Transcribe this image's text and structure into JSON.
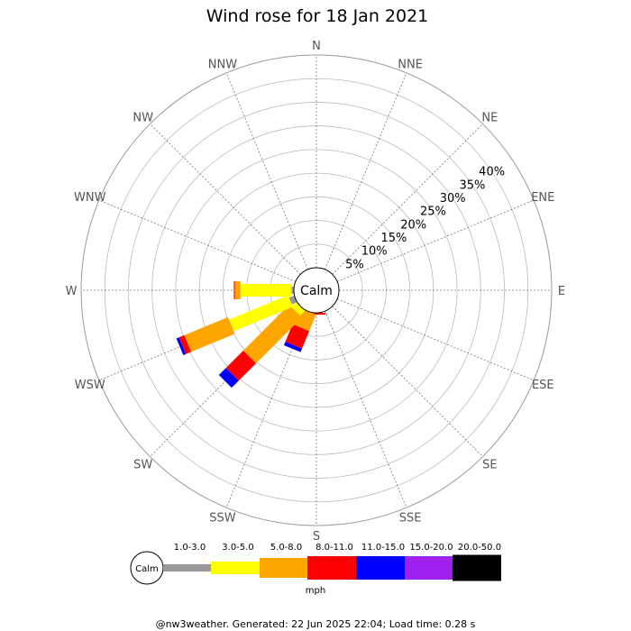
{
  "chart_data": {
    "type": "wind-rose",
    "title": "Wind rose for 18 Jan 2021",
    "directions": [
      "N",
      "NNE",
      "NE",
      "ENE",
      "E",
      "ESE",
      "SE",
      "SSE",
      "S",
      "SSW",
      "SW",
      "WSW",
      "W",
      "WNW",
      "NW",
      "NNW"
    ],
    "radial_ticks": [
      "5%",
      "10%",
      "15%",
      "20%",
      "25%",
      "30%",
      "35%",
      "40%"
    ],
    "radial_values": [
      5,
      10,
      15,
      20,
      25,
      30,
      35,
      40
    ],
    "rmax": 45,
    "calm_label": "Calm",
    "bins": [
      "1.0-3.0",
      "3.0-5.0",
      "5.0-8.0",
      "8.0-11.0",
      "11.0-15.0",
      "15.0-20.0",
      "20.0-50.0"
    ],
    "bin_colors": [
      "#999999",
      "#ffff00",
      "#ffa500",
      "#ff0000",
      "#0000ff",
      "#a020f0",
      "#000000"
    ],
    "unit": "mph",
    "segments": {
      "S": [
        0.0,
        0.0,
        0.0,
        0.4,
        0.0,
        0.0,
        0.0
      ],
      "SSW": [
        0.0,
        0.0,
        3.8,
        4.0,
        0.8,
        0.0,
        0.0
      ],
      "SW": [
        0.0,
        1.5,
        13.7,
        5.2,
        2.1,
        0.0,
        0.0
      ],
      "WSW": [
        1.2,
        13.5,
        10.0,
        1.2,
        0.6,
        0.0,
        0.0
      ],
      "W": [
        0.5,
        10.8,
        1.2,
        0.2,
        0.0,
        0.0,
        0.0
      ]
    }
  },
  "footer": "@nw3weather. Generated: 22 Jun 2025 22:04; Load time: 0.28 s"
}
